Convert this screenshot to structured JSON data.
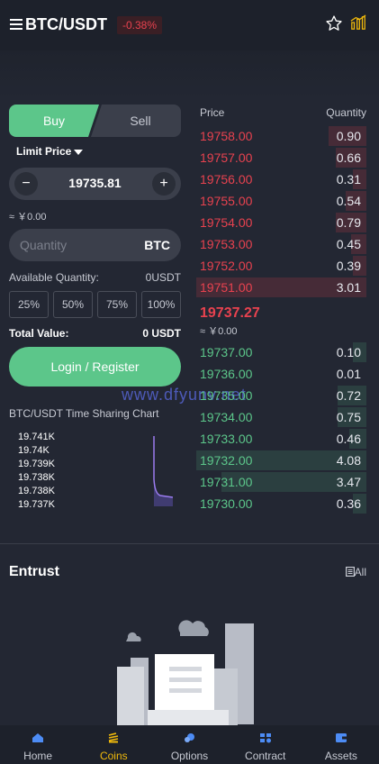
{
  "header": {
    "pair": "BTC/USDT",
    "change": "-0.38%"
  },
  "trade": {
    "buy_label": "Buy",
    "sell_label": "Sell",
    "order_type": "Limit Price",
    "price": "19735.81",
    "approx_cny": "≈ ￥0.00",
    "qty_placeholder": "Quantity",
    "qty_unit": "BTC",
    "available_label": "Available Quantity:",
    "available_value": "0USDT",
    "percents": [
      "25%",
      "50%",
      "75%",
      "100%"
    ],
    "total_label": "Total Value:",
    "total_value": "0 USDT",
    "login_label": "Login / Register"
  },
  "chart": {
    "title": "BTC/USDT Time Sharing Chart",
    "labels": [
      "19.741K",
      "19.74K",
      "19.739K",
      "19.738K",
      "19.738K",
      "19.737K"
    ]
  },
  "watermark": "www.dfyunv.net",
  "orderbook": {
    "price_header": "Price",
    "qty_header": "Quantity",
    "asks": [
      {
        "price": "19758.00",
        "qty": "0.90",
        "depth": 0.22
      },
      {
        "price": "19757.00",
        "qty": "0.66",
        "depth": 0.18
      },
      {
        "price": "19756.00",
        "qty": "0.31",
        "depth": 0.06
      },
      {
        "price": "19755.00",
        "qty": "0.54",
        "depth": 0.12
      },
      {
        "price": "19754.00",
        "qty": "0.79",
        "depth": 0.18
      },
      {
        "price": "19753.00",
        "qty": "0.45",
        "depth": 0.09
      },
      {
        "price": "19752.00",
        "qty": "0.39",
        "depth": 0.08
      },
      {
        "price": "19751.00",
        "qty": "3.01",
        "depth": 1.0
      }
    ],
    "last_price": "19737.27",
    "last_cny": "≈ ￥0.00",
    "bids": [
      {
        "price": "19737.00",
        "qty": "0.10",
        "depth": 0.03
      },
      {
        "price": "19736.00",
        "qty": "0.01",
        "depth": 0.0
      },
      {
        "price": "19735.00",
        "qty": "0.72",
        "depth": 0.17
      },
      {
        "price": "19734.00",
        "qty": "0.75",
        "depth": 0.17
      },
      {
        "price": "19733.00",
        "qty": "0.46",
        "depth": 0.1
      },
      {
        "price": "19732.00",
        "qty": "4.08",
        "depth": 1.0
      },
      {
        "price": "19731.00",
        "qty": "3.47",
        "depth": 0.85
      },
      {
        "price": "19730.00",
        "qty": "0.36",
        "depth": 0.05
      }
    ]
  },
  "entrust": {
    "title": "Entrust",
    "all_label": "All"
  },
  "nav": [
    {
      "label": "Home",
      "icon": "home-icon"
    },
    {
      "label": "Coins",
      "icon": "coins-icon"
    },
    {
      "label": "Options",
      "icon": "options-icon"
    },
    {
      "label": "Contract",
      "icon": "contract-icon"
    },
    {
      "label": "Assets",
      "icon": "wallet-icon"
    }
  ],
  "colors": {
    "green": "#5cc68a",
    "red": "#e8424f",
    "accent": "#f0b90b",
    "bg": "#232733"
  }
}
